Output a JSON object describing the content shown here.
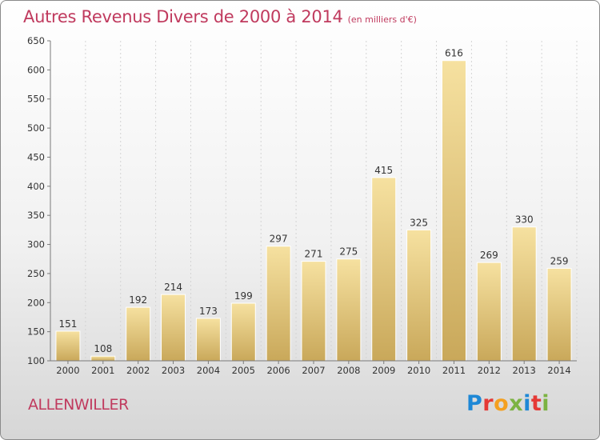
{
  "title": "Autres Revenus Divers de 2000 à 2014",
  "subtitle": "(en milliers d'€)",
  "place": "ALLENWILLER",
  "logo": {
    "letters": [
      {
        "ch": "P",
        "color": "#1e88d6"
      },
      {
        "ch": "r",
        "color": "#e53935"
      },
      {
        "ch": "o",
        "color": "#f4a020"
      },
      {
        "ch": "x",
        "color": "#7cb342"
      },
      {
        "ch": "i",
        "color": "#1e88d6"
      },
      {
        "ch": "t",
        "color": "#e53935"
      },
      {
        "ch": "i",
        "color": "#7cb342"
      }
    ]
  },
  "colors": {
    "title": "#c03a5e",
    "bar_light": "#f6e1a0",
    "bar_dark": "#c9a85a",
    "axis": "#7a7a7a",
    "grid": "#d4d4d4"
  },
  "chart_data": {
    "type": "bar",
    "categories": [
      "2000",
      "2001",
      "2002",
      "2003",
      "2004",
      "2005",
      "2006",
      "2007",
      "2008",
      "2009",
      "2010",
      "2011",
      "2012",
      "2013",
      "2014"
    ],
    "values": [
      151,
      108,
      192,
      214,
      173,
      199,
      297,
      271,
      275,
      415,
      325,
      616,
      269,
      330,
      259
    ],
    "ylim": [
      100,
      650
    ],
    "yticks": [
      100,
      150,
      200,
      250,
      300,
      350,
      400,
      450,
      500,
      550,
      600,
      650
    ],
    "grid": "vertical dashed",
    "legend": "none"
  }
}
